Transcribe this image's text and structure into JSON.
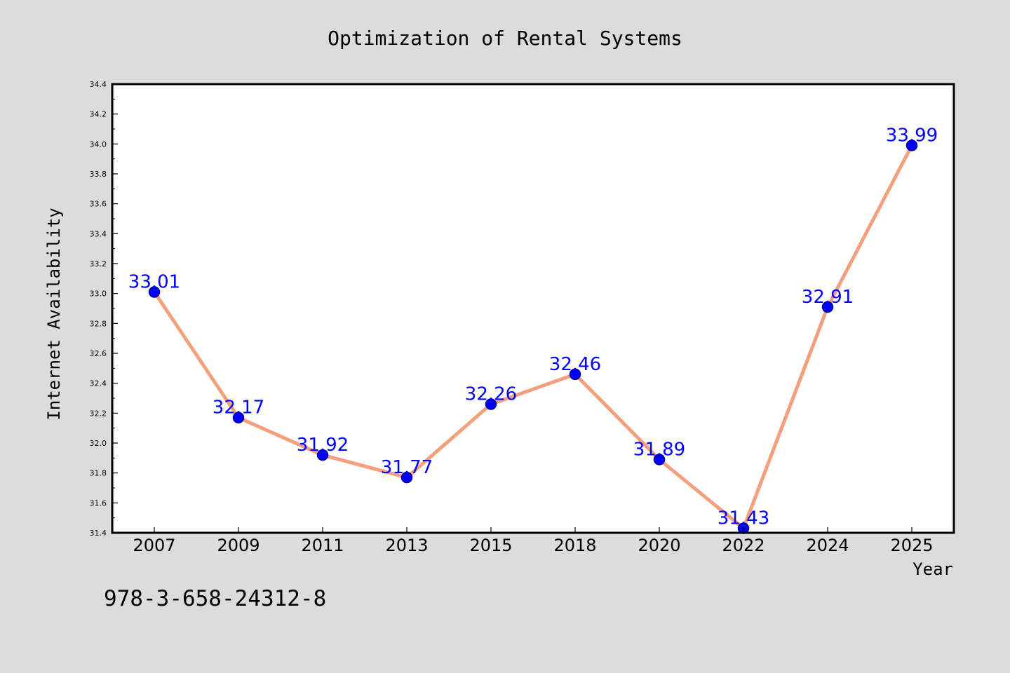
{
  "colors": {
    "background": "#dcdcdc",
    "plot_background": "#ffffff",
    "line": "#f4a07c",
    "marker": "#0000ff",
    "marker_edge": "#00008b",
    "data_label": "#0000ff"
  },
  "chart_data": {
    "type": "line",
    "title": "Optimization of Rental Systems",
    "xlabel": "Year",
    "ylabel": "Internet Availability",
    "categories": [
      "2007",
      "2009",
      "2011",
      "2013",
      "2015",
      "2018",
      "2020",
      "2022",
      "2024",
      "2025"
    ],
    "series": [
      {
        "values": [
          33.01,
          32.17,
          31.92,
          31.77,
          32.26,
          32.46,
          31.89,
          31.43,
          32.91,
          33.99
        ],
        "labels": [
          "33.01",
          "32.17",
          "31.92",
          "31.77",
          "32.26",
          "32.46",
          "31.89",
          "31.43",
          "32.91",
          "33.99"
        ]
      }
    ],
    "ylim": [
      31.4,
      34.4
    ],
    "yticks": [
      "31.4",
      "31.6",
      "31.8",
      "32.0",
      "32.2",
      "32.4",
      "32.6",
      "32.8",
      "33.0",
      "33.2",
      "33.4",
      "33.6",
      "33.8",
      "34.0",
      "34.2",
      "34.4"
    ],
    "grid": false,
    "legend": "none"
  },
  "annotation": "978-3-658-24312-8"
}
